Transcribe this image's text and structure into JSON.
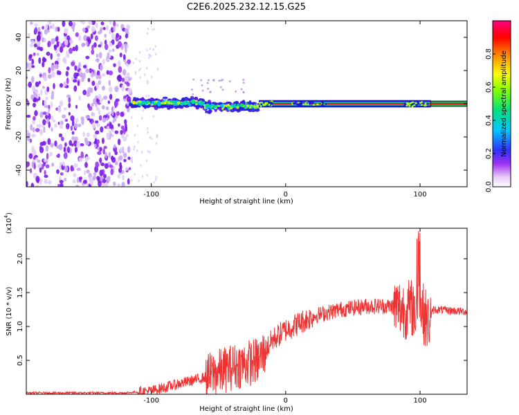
{
  "title": "C2E6.2025.232.12.15.G25",
  "chart_data": [
    {
      "type": "heatmap",
      "name": "spectrogram",
      "xlabel": "Height of straight line (km)",
      "ylabel": "Frequency (Hz)",
      "xlim": [
        -193,
        135
      ],
      "ylim": [
        -50,
        50
      ],
      "xticks": [
        -100,
        0,
        100
      ],
      "xtick_labels": [
        "-100",
        "0",
        "100"
      ],
      "yticks": [
        -40,
        -20,
        0,
        20,
        40
      ],
      "ytick_labels": [
        "-40",
        "-20",
        "0",
        "20",
        "40"
      ],
      "colorbar": {
        "label": "Normalized spectral amplitude",
        "range": [
          0,
          1
        ],
        "ticks": [
          0.0,
          0.2,
          0.4,
          0.6,
          0.8
        ],
        "tick_labels": [
          "0.0",
          "0.2",
          "0.4",
          "0.6",
          "0.8"
        ]
      },
      "regions": [
        {
          "name": "noise",
          "x_range": [
            -193,
            -115
          ],
          "freq_range": [
            -50,
            50
          ],
          "amplitude": 0.1
        },
        {
          "name": "onset",
          "x_range": [
            -115,
            -20
          ],
          "freq_center": 0,
          "freq_spread": 5,
          "amplitude": 0.4
        },
        {
          "name": "signal",
          "x_range": [
            -20,
            135
          ],
          "freq_center": 0,
          "freq_spread": 1,
          "amplitude": 1.0
        }
      ]
    },
    {
      "type": "line",
      "name": "snr",
      "xlabel": "Height of straight line (km)",
      "ylabel": "SNR (10 * v/v)",
      "scale_label": "(x10",
      "scale_exp": "4",
      "scale_close": ")",
      "xlim": [
        -193,
        135
      ],
      "ylim": [
        0,
        2.45
      ],
      "xticks": [
        -100,
        0,
        100
      ],
      "xtick_labels": [
        "-100",
        "0",
        "100"
      ],
      "yticks": [
        0.5,
        1.0,
        1.5,
        2.0
      ],
      "ytick_labels": [
        "0.5",
        "1.0",
        "1.5",
        "2.0"
      ],
      "color": "#ee3333",
      "x": [
        -193,
        -120,
        -100,
        -80,
        -60,
        -40,
        -20,
        -10,
        0,
        20,
        40,
        60,
        80,
        90,
        100,
        106,
        110,
        135
      ],
      "y": [
        0.02,
        0.02,
        0.05,
        0.15,
        0.25,
        0.4,
        0.5,
        0.8,
        0.95,
        1.15,
        1.25,
        1.3,
        1.3,
        1.25,
        1.3,
        1.05,
        1.25,
        1.22
      ]
    }
  ]
}
